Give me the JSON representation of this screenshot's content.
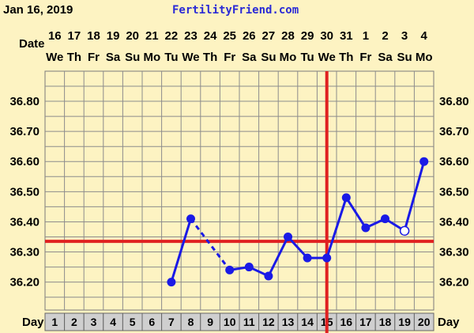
{
  "header": {
    "date": "Jan 16, 2019",
    "site": "FertilityFriend.com"
  },
  "chart_data": {
    "type": "line",
    "title": "",
    "row_labels": {
      "date": "Date",
      "day": "Day"
    },
    "dates": [
      "16",
      "17",
      "18",
      "19",
      "20",
      "21",
      "22",
      "23",
      "24",
      "25",
      "26",
      "27",
      "28",
      "29",
      "30",
      "31",
      "1",
      "2",
      "3",
      "4"
    ],
    "weekdays": [
      "We",
      "Th",
      "Fr",
      "Sa",
      "Su",
      "Mo",
      "Tu",
      "We",
      "Th",
      "Fr",
      "Sa",
      "Su",
      "Mo",
      "Tu",
      "We",
      "Th",
      "Fr",
      "Sa",
      "Su",
      "Mo"
    ],
    "days": [
      1,
      2,
      3,
      4,
      5,
      6,
      7,
      8,
      9,
      10,
      11,
      12,
      13,
      14,
      15,
      16,
      17,
      18,
      19,
      20
    ],
    "y_ticks": [
      "36.80",
      "36.70",
      "36.60",
      "36.50",
      "36.40",
      "36.30",
      "36.20"
    ],
    "ylim": [
      36.12,
      36.9
    ],
    "series": [
      {
        "values": [
          null,
          null,
          null,
          null,
          null,
          null,
          36.2,
          36.41,
          null,
          36.24,
          36.25,
          36.22,
          36.35,
          36.28,
          36.28,
          36.48,
          36.38,
          36.41,
          36.37,
          36.6
        ],
        "open_points": [
          19
        ],
        "dashed_segments": [
          [
            8,
            10
          ]
        ],
        "color": "#1a1ae6"
      }
    ],
    "coverline": 36.335,
    "ovulation_day": 15,
    "marker_color": "#e02020",
    "grid": true
  }
}
